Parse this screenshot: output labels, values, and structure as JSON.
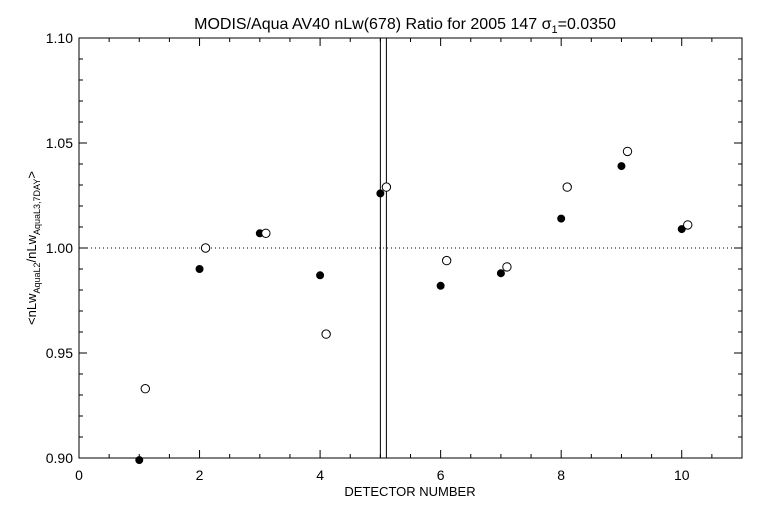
{
  "chart_data": {
    "type": "scatter",
    "title_main": "MODIS/Aqua AV40 nLw(678) Ratio for 2005 147 ",
    "title_sigma": "σ",
    "title_sigma_sub": "1",
    "title_sigma_value": "=0.0350",
    "xlabel": "DETECTOR NUMBER",
    "ylabel": {
      "open": "<nLw",
      "sub1": "AquaL2",
      "mid": "/nLw",
      "sub2": "AquaL3,7DAY",
      "close": ">"
    },
    "xlim": [
      0,
      11
    ],
    "ylim": [
      0.9,
      1.1
    ],
    "x_ticks": [
      0,
      2,
      4,
      6,
      8,
      10
    ],
    "y_ticks": [
      0.9,
      0.95,
      1.0,
      1.05,
      1.1
    ],
    "x_tick_labels": [
      "0",
      "2",
      "4",
      "6",
      "8",
      "10"
    ],
    "y_tick_labels": [
      "0.90",
      "0.95",
      "1.00",
      "1.05",
      "1.10"
    ],
    "reference_line_y": 1.0,
    "vertical_lines_x": [
      5.0,
      5.1
    ],
    "series": [
      {
        "marker": "filled-circle",
        "x": [
          1,
          2,
          3,
          4,
          5,
          6,
          7,
          8,
          9,
          10
        ],
        "y": [
          0.899,
          0.99,
          1.007,
          0.987,
          1.026,
          0.982,
          0.988,
          1.014,
          1.039,
          1.009
        ]
      },
      {
        "marker": "open-circle",
        "x": [
          1.1,
          2.1,
          3.1,
          4.1,
          5.1,
          6.1,
          7.1,
          8.1,
          9.1,
          10.1
        ],
        "y": [
          0.933,
          1.0,
          1.007,
          0.959,
          1.029,
          0.994,
          0.991,
          1.029,
          1.046,
          1.011
        ]
      }
    ],
    "grid": false,
    "legend": "none"
  }
}
